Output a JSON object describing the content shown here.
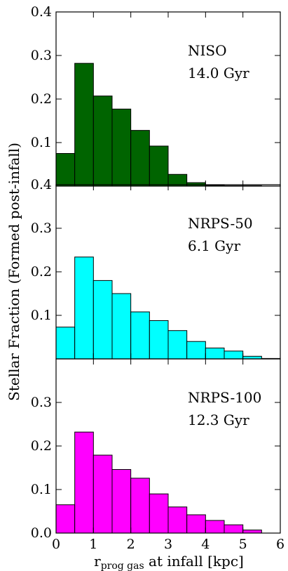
{
  "chart_data": {
    "type": "bar",
    "xlabel_main": "r",
    "xlabel_sub": "prog gas",
    "xlabel_rest": " at infall [kpc]",
    "ylabel": "Stellar Fraction (Formed post-infall)",
    "xlim": [
      0,
      6
    ],
    "ylim": [
      0,
      0.4
    ],
    "xticks": [
      "0",
      "1",
      "2",
      "3",
      "4",
      "5",
      "6"
    ],
    "bin_width": 0.5,
    "panels": [
      {
        "label_line1": "NISO",
        "label_line2": "14.0 Gyr",
        "color": "#006400",
        "yticks": [
          "0.1",
          "0.2",
          "0.3",
          "0.4"
        ],
        "bin_edges": [
          0,
          0.5,
          1.0,
          1.5,
          2.0,
          2.5,
          3.0,
          3.5,
          4.0,
          4.5,
          5.0,
          5.5
        ],
        "values": [
          0.075,
          0.282,
          0.207,
          0.177,
          0.128,
          0.092,
          0.027,
          0.008,
          0.002,
          0.001,
          0.001,
          0.0
        ]
      },
      {
        "label_line1": "NRPS-50",
        "label_line2": "6.1 Gyr",
        "color": "#00ffff",
        "yticks": [
          "0.1",
          "0.2",
          "0.3",
          "0.4"
        ],
        "bin_edges": [
          0,
          0.5,
          1.0,
          1.5,
          2.0,
          2.5,
          3.0,
          3.5,
          4.0,
          4.5,
          5.0,
          5.5
        ],
        "values": [
          0.073,
          0.234,
          0.18,
          0.15,
          0.108,
          0.088,
          0.065,
          0.04,
          0.025,
          0.018,
          0.006,
          0.001
        ]
      },
      {
        "label_line1": "NRPS-100",
        "label_line2": "12.3 Gyr",
        "color": "#ff00ff",
        "yticks": [
          "0.0",
          "0.1",
          "0.2",
          "0.3"
        ],
        "bin_edges": [
          0,
          0.5,
          1.0,
          1.5,
          2.0,
          2.5,
          3.0,
          3.5,
          4.0,
          4.5,
          5.0
        ],
        "values": [
          0.065,
          0.232,
          0.179,
          0.146,
          0.126,
          0.09,
          0.06,
          0.042,
          0.029,
          0.019,
          0.007
        ]
      }
    ]
  }
}
